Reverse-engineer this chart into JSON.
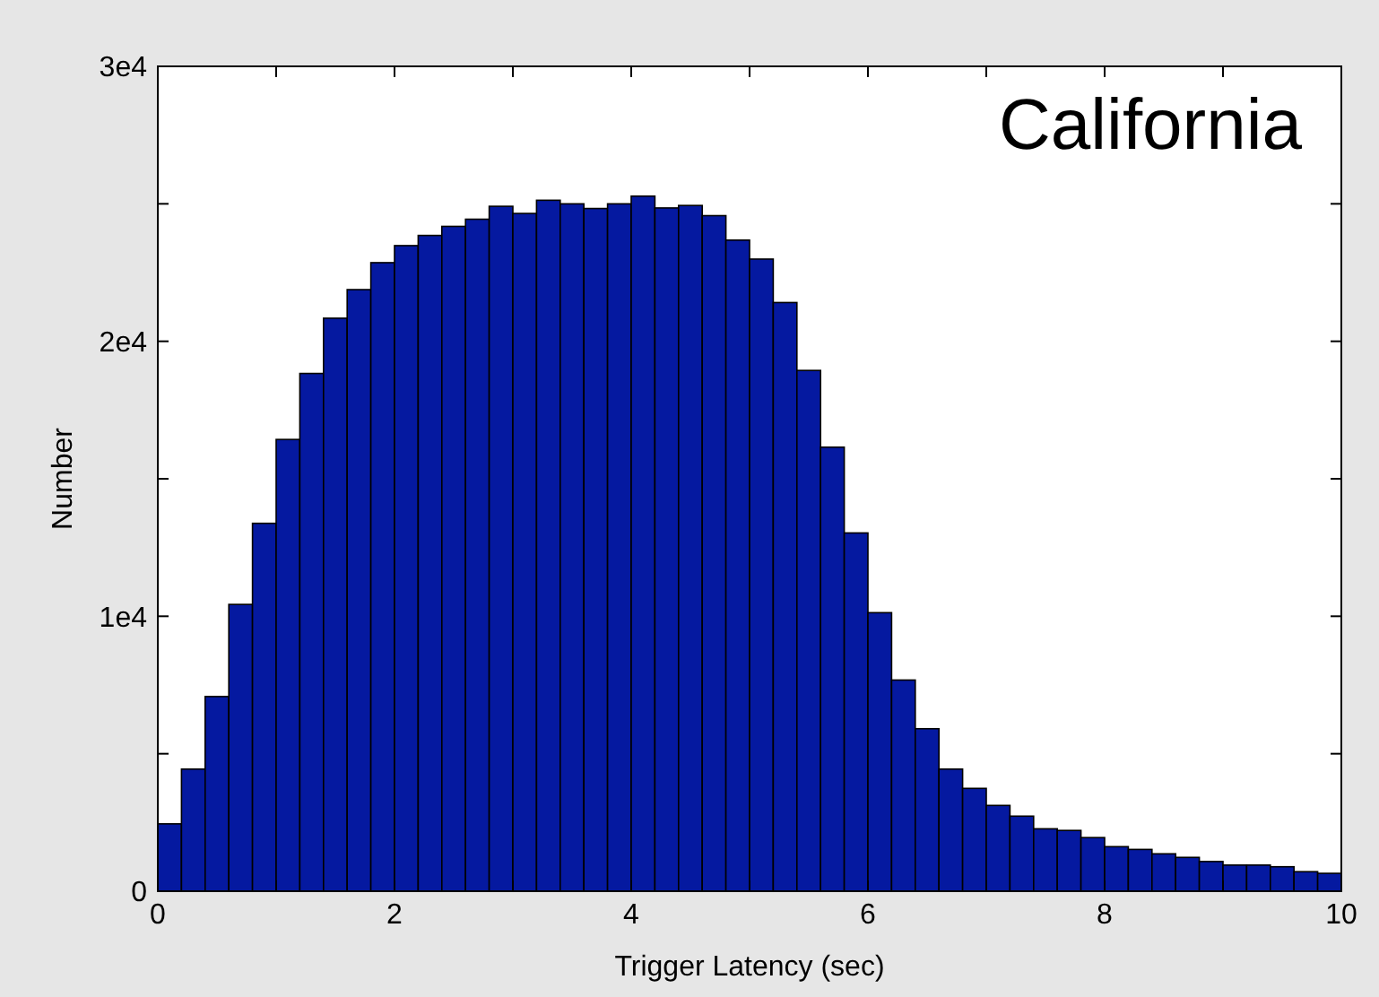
{
  "chart_data": {
    "type": "histogram",
    "xlabel": "Trigger Latency (sec)",
    "ylabel": "Number",
    "annotations": [
      "California"
    ],
    "bins": [
      0,
      0.2,
      0.4,
      0.6,
      0.8,
      1,
      1.2,
      1.4,
      1.6,
      1.8,
      2,
      2.2,
      2.4,
      2.6,
      2.8,
      3,
      3.2,
      3.4,
      3.6,
      3.8,
      4,
      4.2,
      4.4,
      4.6,
      4.8,
      5,
      5.2,
      5.4,
      5.6,
      5.8,
      6,
      6.2,
      6.4,
      6.6,
      6.8,
      7,
      7.2,
      7.4,
      7.6,
      7.8,
      8,
      8.2,
      8.4,
      8.6,
      8.8,
      9,
      9.2,
      9.4,
      9.6,
      9.8,
      10
    ],
    "values": [
      2450,
      4440,
      7080,
      10430,
      13380,
      16430,
      18830,
      20840,
      21880,
      22860,
      23480,
      23850,
      24180,
      24440,
      24910,
      24650,
      25130,
      25000,
      24830,
      25000,
      25280,
      24850,
      24940,
      24570,
      23680,
      22990,
      21410,
      18940,
      16150,
      13030,
      10130,
      7680,
      5910,
      4440,
      3740,
      3120,
      2730,
      2270,
      2210,
      1950,
      1620,
      1520,
      1360,
      1230,
      1080,
      950,
      950,
      890,
      710,
      650
    ],
    "color": "#0519a0",
    "xlim": [
      0,
      10
    ],
    "xticks": [
      0,
      {
        "value": 1,
        "label": null
      },
      2,
      {
        "value": 3,
        "label": null
      },
      4,
      {
        "value": 5,
        "label": null
      },
      6,
      {
        "value": 7,
        "label": null
      },
      8,
      {
        "value": 9,
        "label": null
      },
      10
    ],
    "ylim": [
      0,
      30000
    ],
    "yticks": [
      {
        "value": 0,
        "label": "0"
      },
      {
        "value": 5000,
        "label": null
      },
      {
        "value": 10000,
        "label": "1e4"
      },
      {
        "value": 15000,
        "label": null
      },
      {
        "value": 20000,
        "label": "2e4"
      },
      {
        "value": 25000,
        "label": null
      },
      {
        "value": 30000,
        "label": "3e4"
      }
    ],
    "grid": false
  }
}
